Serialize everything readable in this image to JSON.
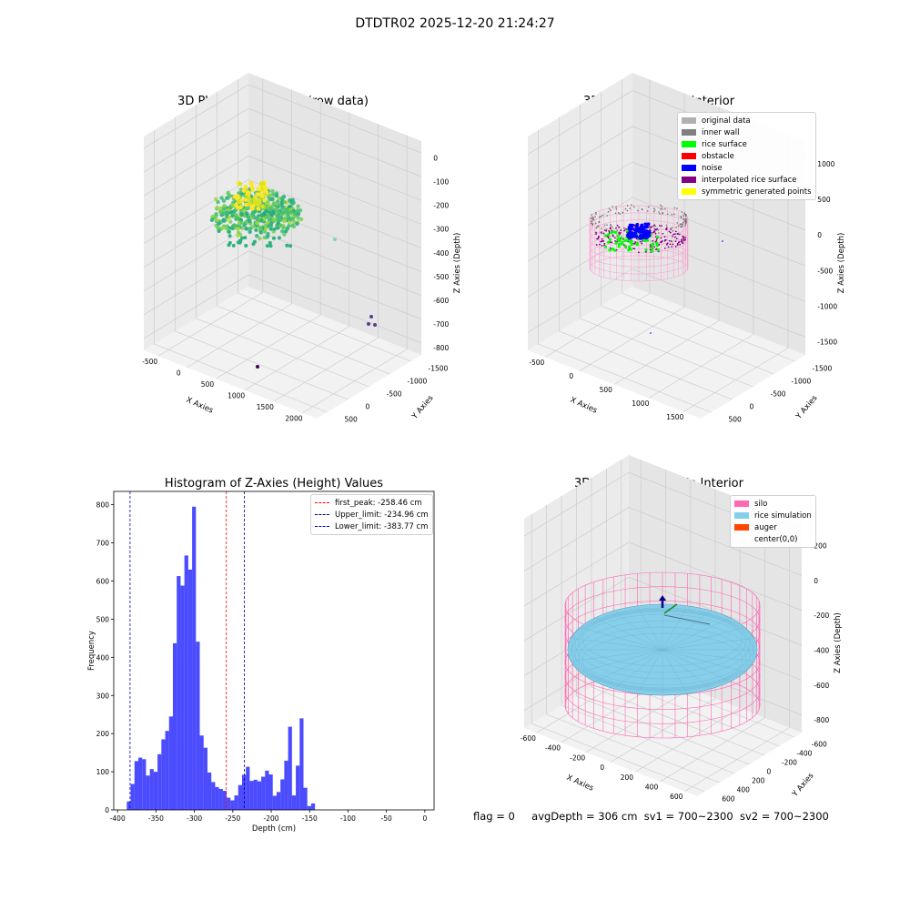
{
  "suptitle": "DTDTR02 2025-12-20 21:24:27",
  "panels": {
    "raw": {
      "title": "3D Plot of Silo Interior(row data)",
      "xlabel": "X Axies",
      "ylabel": "Y Axies",
      "zlabel": "Z Axies (Depth)",
      "xticks": [
        "-500",
        "0",
        "500",
        "1000",
        "1500",
        "2000"
      ],
      "yticks": [
        "500",
        "0",
        "-500",
        "-1000",
        "-1500"
      ],
      "zticks": [
        "0",
        "-100",
        "-200",
        "-300",
        "-400",
        "-500",
        "-600",
        "-700",
        "-800"
      ]
    },
    "classify": {
      "title": "3D classify of Silo Interior",
      "xlabel": "X Axies",
      "ylabel": "Y Axies",
      "zlabel": "Z Axies (Depth)",
      "xticks": [
        "-500",
        "0",
        "500",
        "1000",
        "1500"
      ],
      "yticks": [
        "500",
        "0",
        "-500",
        "-1000",
        "-1500"
      ],
      "zticks": [
        "1000",
        "500",
        "0",
        "-500",
        "-1000",
        "-1500"
      ],
      "legend": [
        {
          "label": "original data",
          "color": "#b0b0b0"
        },
        {
          "label": "inner wall",
          "color": "#808080"
        },
        {
          "label": "rice surface",
          "color": "#00ff00"
        },
        {
          "label": "obstacle",
          "color": "#ff0000"
        },
        {
          "label": "noise",
          "color": "#0000ff"
        },
        {
          "label": "interpolated rice surface",
          "color": "#800080"
        },
        {
          "label": "symmetric generated points",
          "color": "#ffff00"
        }
      ]
    },
    "simulation": {
      "title": "3D simulation of Silo Interior",
      "xlabel": "X Axies",
      "ylabel": "Y Axies",
      "zlabel": "Z Axies (Depth)",
      "xticks": [
        "-600",
        "-400",
        "-200",
        "0",
        "200",
        "400",
        "600"
      ],
      "yticks": [
        "600",
        "400",
        "200",
        "0",
        "-200",
        "-400",
        "-600"
      ],
      "zticks": [
        "200",
        "0",
        "-200",
        "-400",
        "-600",
        "-800"
      ],
      "legend": [
        {
          "label": "silo",
          "color": "#ff69b4"
        },
        {
          "label": "rice simulation",
          "color": "#87ceeb"
        },
        {
          "label": "auger",
          "color": "#ff4500"
        },
        {
          "label": "center(0,0)",
          "color": "#ffffff"
        }
      ]
    }
  },
  "chart_data": {
    "type": "bar",
    "title": "Histogram of Z-Axies (Height) Values",
    "xlabel": "Depth (cm)",
    "ylabel": "Frequency",
    "xlim": [
      -405,
      12
    ],
    "ylim": [
      0,
      835
    ],
    "xticks": [
      -400,
      -350,
      -300,
      -250,
      -200,
      -150,
      -100,
      -50,
      0
    ],
    "yticks": [
      0,
      100,
      200,
      300,
      400,
      500,
      600,
      700,
      800
    ],
    "bar_color": "#0000ff",
    "bin_start": -388,
    "bin_width": 5,
    "values": [
      22,
      68,
      128,
      137,
      133,
      90,
      107,
      100,
      146,
      185,
      207,
      245,
      437,
      613,
      588,
      667,
      630,
      795,
      441,
      195,
      163,
      98,
      73,
      60,
      55,
      50,
      32,
      25,
      38,
      65,
      92,
      113,
      76,
      79,
      75,
      87,
      103,
      93,
      37,
      47,
      80,
      129,
      218,
      38,
      116,
      240,
      58,
      10,
      17
    ],
    "lines": [
      {
        "label": "first_peak: -258.46 cm",
        "x": -258.46,
        "color": "#ff0000"
      },
      {
        "label": "Upper_limit: -234.96 cm",
        "x": -234.96,
        "color": "#00008b"
      },
      {
        "label": "Lower_limit: -383.77 cm",
        "x": -383.77,
        "color": "#0000cd"
      }
    ],
    "legend_position": "top-right"
  },
  "status": {
    "flag": "flag = 0",
    "avg_depth": "avgDepth = 306 cm",
    "sv1": "sv1 = 700~2300",
    "sv2": "sv2 = 700~2300"
  }
}
